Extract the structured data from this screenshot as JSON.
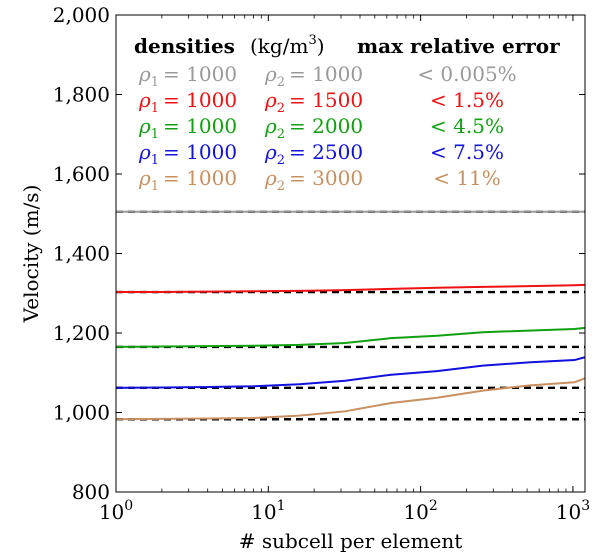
{
  "chart_data": {
    "type": "line",
    "xlabel": "# subcell per element",
    "ylabel": "Velocity (m/s)",
    "xscale": "log",
    "xlim": [
      1,
      1200
    ],
    "ylim": [
      800,
      2000
    ],
    "grid": false,
    "x_ticks": [
      {
        "value": 1,
        "base": "10",
        "exp": "0"
      },
      {
        "value": 10,
        "base": "10",
        "exp": "1"
      },
      {
        "value": 100,
        "base": "10",
        "exp": "2"
      },
      {
        "value": 1000,
        "base": "10",
        "exp": "3"
      }
    ],
    "y_ticks": [
      {
        "value": 800,
        "label": "800"
      },
      {
        "value": 1000,
        "label": "1,000"
      },
      {
        "value": 1200,
        "label": "1,200"
      },
      {
        "value": 1400,
        "label": "1,400"
      },
      {
        "value": 1600,
        "label": "1,600"
      },
      {
        "value": 1800,
        "label": "1,800"
      },
      {
        "value": 2000,
        "label": "2,000"
      }
    ],
    "legend": {
      "placement": "top",
      "header": {
        "densities": "densities",
        "units": "(kg/m",
        "units_exp": "3",
        "units_close": ")",
        "error": "max relative error"
      },
      "rows": [
        {
          "rho1_sym": "ρ",
          "rho1_sub": "1",
          "rho1_val": "= 1000",
          "rho2_sym": "ρ",
          "rho2_sub": "2",
          "rho2_val": "= 1000",
          "error": "< 0.005%",
          "color": "#999999"
        },
        {
          "rho1_sym": "ρ",
          "rho1_sub": "1",
          "rho1_val": "= 1000",
          "rho2_sym": "ρ",
          "rho2_sub": "2",
          "rho2_val": "= 1500",
          "error": "< 1.5%",
          "color": "#ee1111"
        },
        {
          "rho1_sym": "ρ",
          "rho1_sub": "1",
          "rho1_val": "= 1000",
          "rho2_sym": "ρ",
          "rho2_sub": "2",
          "rho2_val": "= 2000",
          "error": "< 4.5%",
          "color": "#11a011"
        },
        {
          "rho1_sym": "ρ",
          "rho1_sub": "1",
          "rho1_val": "= 1000",
          "rho2_sym": "ρ",
          "rho2_sub": "2",
          "rho2_val": "= 2500",
          "error": "< 7.5%",
          "color": "#1111dd"
        },
        {
          "rho1_sym": "ρ",
          "rho1_sub": "1",
          "rho1_val": "= 1000",
          "rho2_sym": "ρ",
          "rho2_sub": "2",
          "rho2_val": "= 3000",
          "error": "< 11%",
          "color": "#c89060"
        }
      ]
    },
    "reference_lines": [
      1505,
      1303,
      1165,
      1062,
      983
    ],
    "reference_color": "#000000",
    "series": [
      {
        "color": "#999999",
        "x": [
          1,
          2,
          4,
          8,
          16,
          32,
          64,
          128,
          256,
          512,
          1024,
          1200
        ],
        "y": [
          1505,
          1505,
          1505,
          1505,
          1505,
          1505,
          1505,
          1505,
          1505,
          1505,
          1505,
          1505
        ]
      },
      {
        "color": "#ee1111",
        "x": [
          1,
          2,
          4,
          8,
          16,
          32,
          64,
          128,
          256,
          512,
          1024,
          1200
        ],
        "y": [
          1303,
          1303,
          1304,
          1305,
          1306,
          1308,
          1311,
          1314,
          1316,
          1318,
          1320,
          1321
        ]
      },
      {
        "color": "#11a011",
        "x": [
          1,
          2,
          4,
          8,
          16,
          32,
          64,
          128,
          256,
          512,
          1024,
          1200
        ],
        "y": [
          1165,
          1166,
          1167,
          1168,
          1170,
          1175,
          1187,
          1193,
          1202,
          1206,
          1210,
          1213
        ]
      },
      {
        "color": "#1111dd",
        "x": [
          1,
          2,
          4,
          8,
          16,
          32,
          64,
          128,
          256,
          512,
          1024,
          1200
        ],
        "y": [
          1062,
          1063,
          1064,
          1066,
          1071,
          1080,
          1095,
          1104,
          1118,
          1126,
          1132,
          1139
        ]
      },
      {
        "color": "#c89060",
        "x": [
          1,
          2,
          4,
          8,
          16,
          32,
          64,
          128,
          256,
          512,
          1024,
          1200
        ],
        "y": [
          983,
          984,
          985,
          986,
          992,
          1003,
          1024,
          1037,
          1055,
          1068,
          1076,
          1086
        ]
      }
    ]
  }
}
